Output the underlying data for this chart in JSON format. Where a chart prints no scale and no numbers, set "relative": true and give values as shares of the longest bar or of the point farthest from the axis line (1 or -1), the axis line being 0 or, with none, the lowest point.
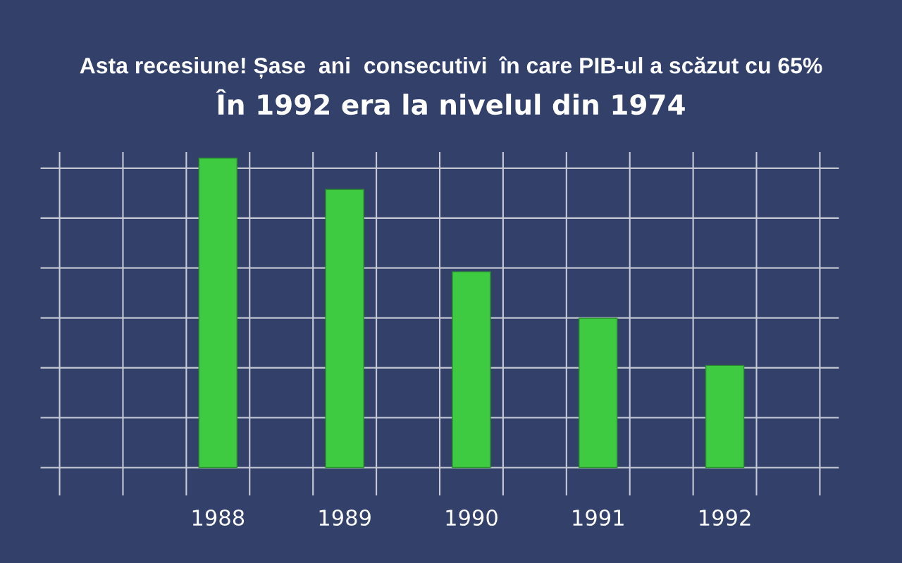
{
  "chart_data": {
    "type": "bar",
    "title": "Asta recesiune! Șase  ani  consecutivi  în care PIB-ul a scăzut cu 65%",
    "subtitle": "În 1992 era la nivelul din 1974",
    "categories": [
      "1988",
      "1989",
      "1990",
      "1991",
      "1992"
    ],
    "values": [
      1,
      0.899,
      0.633,
      0.483,
      0.33
    ],
    "color": "#3ecb42",
    "relative": true,
    "grid": true
  }
}
